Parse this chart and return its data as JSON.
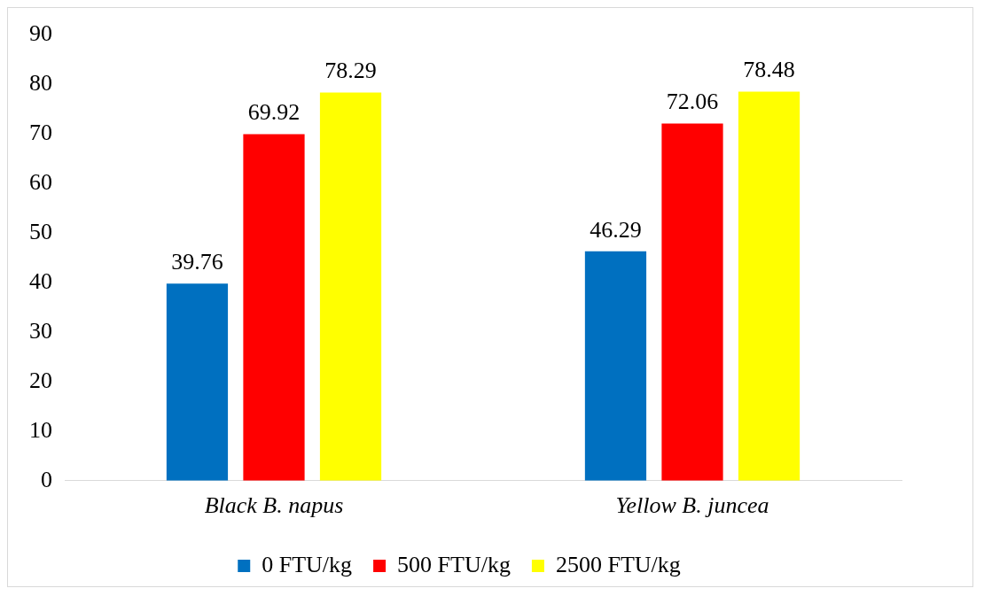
{
  "chart_data": {
    "type": "bar",
    "categories": [
      "Black B. napus",
      "Yellow B. juncea"
    ],
    "series": [
      {
        "name": "0 FTU/kg",
        "color": "#0070c0",
        "values": [
          39.76,
          46.29
        ]
      },
      {
        "name": "500 FTU/kg",
        "color": "#ff0000",
        "values": [
          69.92,
          72.06
        ]
      },
      {
        "name": "2500 FTU/kg",
        "color": "#ffff00",
        "values": [
          78.29,
          78.48
        ]
      }
    ],
    "ylim": [
      0,
      90
    ],
    "yticks": [
      0,
      10,
      20,
      30,
      40,
      50,
      60,
      70,
      80,
      90
    ],
    "grid": false,
    "legend": "bottom",
    "data_labels": true
  }
}
